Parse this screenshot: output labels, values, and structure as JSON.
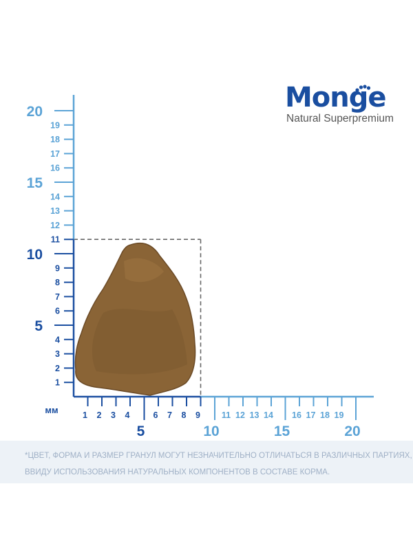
{
  "brand": {
    "name": "Monge",
    "tagline": "Natural Superpremium",
    "color": "#1a4ea0"
  },
  "ruler": {
    "unit": "мм",
    "y_ticks": [
      1,
      2,
      3,
      4,
      5,
      6,
      7,
      8,
      9,
      10,
      11,
      12,
      13,
      14,
      15,
      16,
      17,
      18,
      19,
      20
    ],
    "y_labels_small": [
      "1",
      "2",
      "3",
      "4",
      "6",
      "7",
      "8",
      "9",
      "11",
      "12",
      "13",
      "14",
      "16",
      "17",
      "18",
      "19"
    ],
    "y_labels_large": [
      "5",
      "10",
      "15",
      "20"
    ],
    "x_ticks": [
      1,
      2,
      3,
      4,
      5,
      6,
      7,
      8,
      9,
      10,
      11,
      12,
      13,
      14,
      15,
      16,
      17,
      18,
      19,
      20
    ],
    "x_labels_small": [
      "1",
      "2",
      "3",
      "4",
      "6",
      "7",
      "8",
      "9",
      "11",
      "12",
      "13",
      "14",
      "16",
      "17",
      "18",
      "19"
    ],
    "x_labels_large": [
      "5",
      "10",
      "15",
      "20"
    ],
    "axis_color_dark": "#1a4ea0",
    "axis_color_light": "#5ba3d6",
    "kibble_bbox_mm": {
      "width": 9,
      "height": 11
    }
  },
  "kibble": {
    "colors": [
      "#8a6436",
      "#6b4a26",
      "#a97d48"
    ]
  },
  "disclaimer": {
    "line1": "*Цвет, форма и размер гранул могут незначительно отличаться в различных партиях,",
    "line2": "ввиду использования натуральных компонентов в составе корма."
  }
}
